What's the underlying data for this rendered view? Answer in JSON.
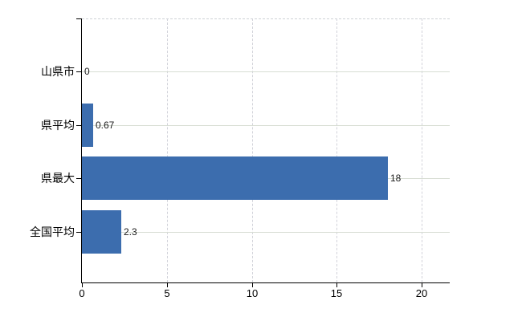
{
  "chart_data": {
    "type": "bar",
    "orientation": "horizontal",
    "title": "",
    "xlabel": "",
    "ylabel": "",
    "categories": [
      "山県市",
      "県平均",
      "県最大",
      "全国平均"
    ],
    "values": [
      0,
      0.67,
      18,
      2.3
    ],
    "value_labels": [
      "0",
      "0.67",
      "18",
      "2.3"
    ],
    "x_ticks": [
      "0",
      "5",
      "10",
      "15",
      "20"
    ],
    "x_tick_values": [
      0,
      5,
      10,
      15,
      20
    ],
    "xlim": [
      0,
      21.65
    ],
    "grid": "on",
    "legend": "none",
    "colors": {
      "bar": "#3c6dae",
      "h_gridline": "#d7ddd3",
      "v_gridline": "#d2d3da",
      "top_gridline": "#ced2d6",
      "axis": "#000000",
      "text": "#000000",
      "background": "#ffffff"
    }
  }
}
